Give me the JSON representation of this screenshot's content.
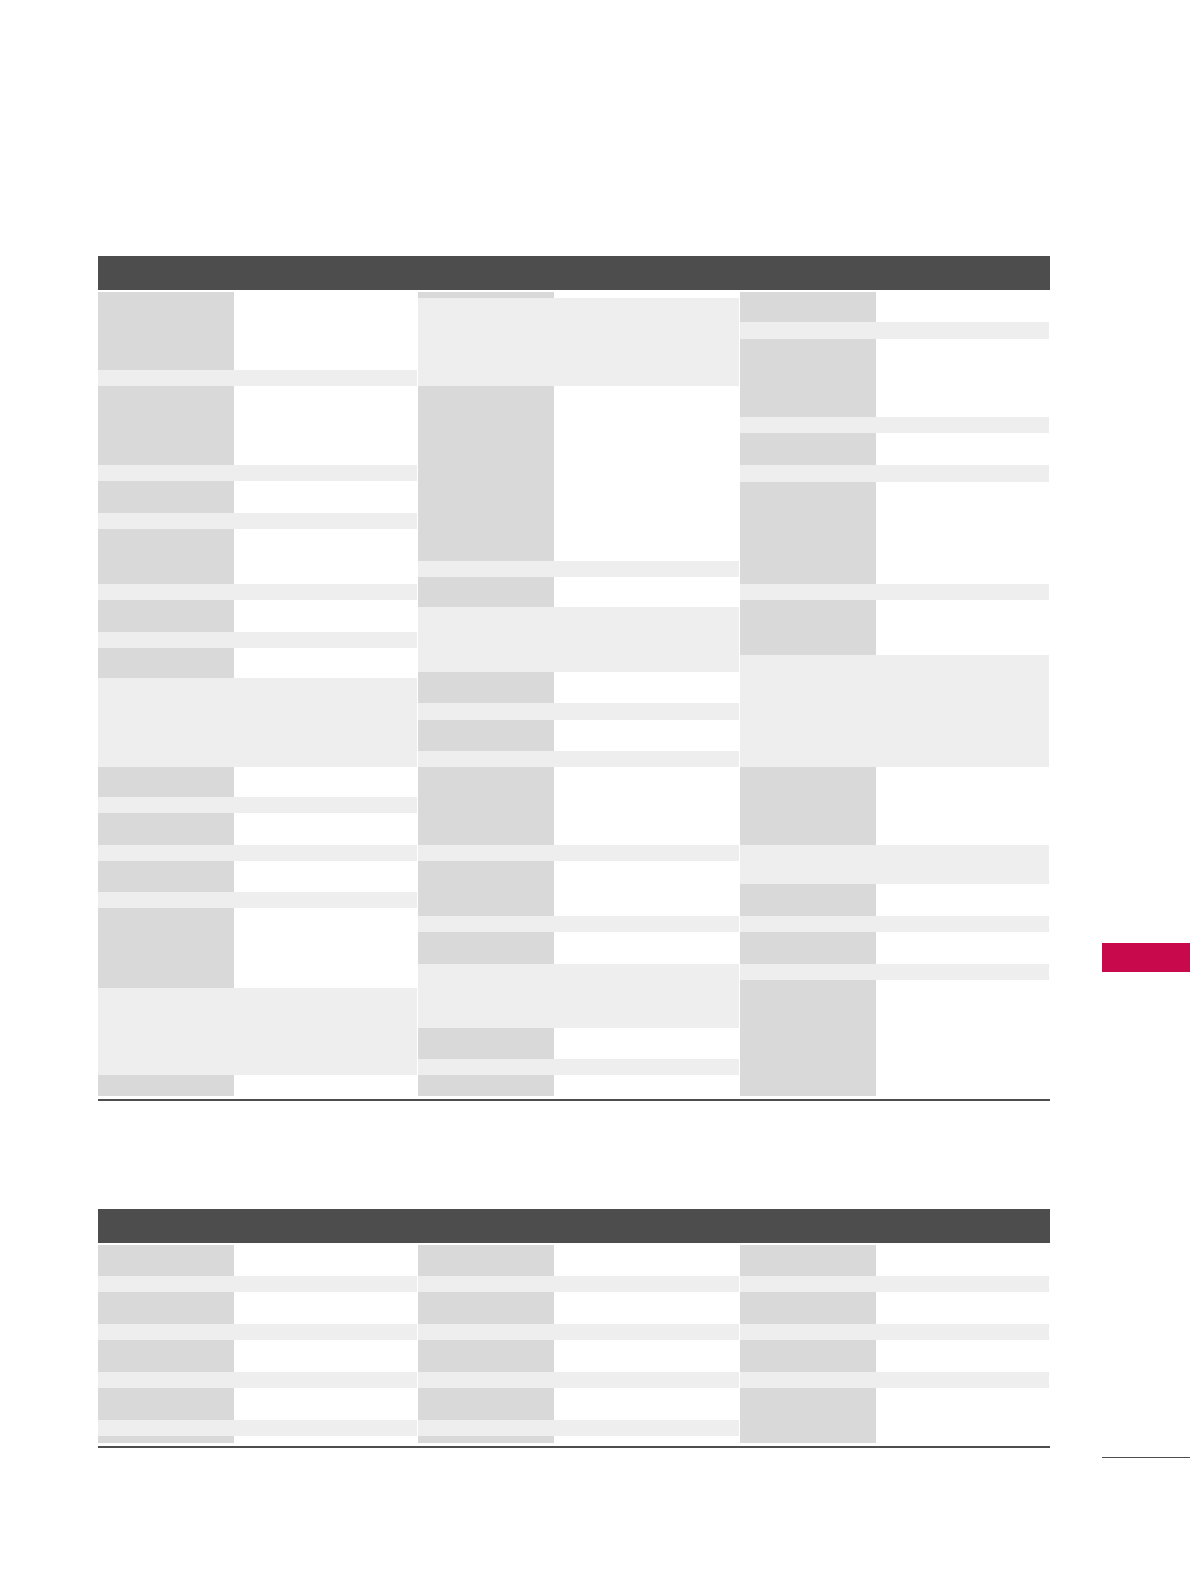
{
  "colors": {
    "page_background": "#ffffff",
    "table_header": "#4d4d4d",
    "label_cell": "#d9d9d9",
    "stripe_cell": "#eeeeee",
    "value_cell": "#ffffff",
    "rule": "#4d4d4d",
    "side_tab": "#c8094c"
  },
  "tables": [
    {
      "name": "table-1",
      "header_text": ""
    },
    {
      "name": "table-2",
      "header_text": ""
    }
  ]
}
